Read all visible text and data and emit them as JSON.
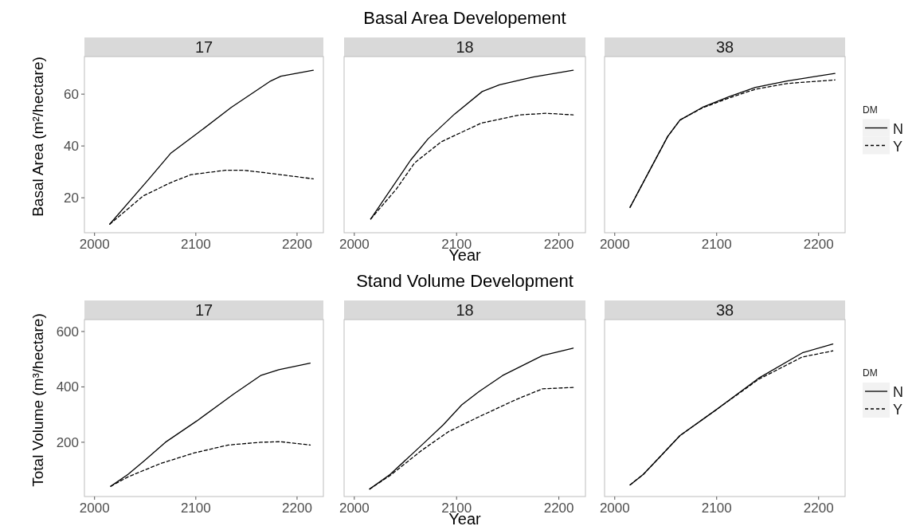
{
  "chart_data": [
    {
      "type": "line",
      "subtitle": "17",
      "ylabel": "Basal Area (m²/hectare)",
      "xlim": [
        1990,
        2226
      ],
      "xticks": [
        2000,
        2100,
        2200
      ],
      "ylim": [
        6.5,
        74.5
      ],
      "yticks": [
        20,
        40,
        60
      ],
      "legend": false,
      "series": [
        {
          "color": "#000000",
          "line_style": "solid",
          "x": [
            2015,
            2054,
            2075,
            2101,
            2135,
            2174,
            2184,
            2216
          ],
          "values": [
            9.8,
            27.4,
            37.1,
            44.7,
            54.9,
            65.1,
            66.9,
            69.2
          ]
        },
        {
          "color": "#000000",
          "line_style": "dashed",
          "x": [
            2015,
            2048,
            2075,
            2095,
            2129,
            2148,
            2174,
            2216
          ],
          "values": [
            9.8,
            20.7,
            25.8,
            28.9,
            30.6,
            30.6,
            29.4,
            27.3
          ]
        }
      ]
    },
    {
      "type": "line",
      "title": "Basal Area Developement",
      "subtitle": "18",
      "xlabel": "Year",
      "xlim": [
        1990,
        2226
      ],
      "xticks": [
        2000,
        2100,
        2200
      ],
      "ylim": [
        6.5,
        74.5
      ],
      "tick_labels": "x",
      "legend": false,
      "series": [
        {
          "color": "#000000",
          "line_style": "solid",
          "x": [
            2016,
            2055,
            2072,
            2098,
            2125,
            2142,
            2175,
            2214
          ],
          "values": [
            11.8,
            34.5,
            42.7,
            52.3,
            61.0,
            63.6,
            66.6,
            69.2
          ]
        },
        {
          "color": "#000000",
          "line_style": "dashed",
          "x": [
            2016,
            2041,
            2059,
            2085,
            2124,
            2162,
            2188,
            2214
          ],
          "values": [
            11.8,
            23.3,
            33.5,
            41.6,
            48.8,
            52.0,
            52.6,
            52.0
          ]
        }
      ]
    },
    {
      "type": "line",
      "subtitle": "38",
      "xlim": [
        1990,
        2226
      ],
      "xticks": [
        2000,
        2100,
        2200
      ],
      "ylim": [
        6.5,
        74.5
      ],
      "tick_labels": "x",
      "legend": "right",
      "legend_title": "DM",
      "series": [
        {
          "name": "N",
          "color": "#000000",
          "line_style": "solid",
          "x": [
            2015,
            2034,
            2052,
            2064,
            2086,
            2112,
            2138,
            2169,
            2216
          ],
          "values": [
            16.3,
            30.4,
            43.7,
            50.0,
            54.9,
            59.0,
            62.6,
            65.1,
            68.0
          ]
        },
        {
          "name": "Y",
          "color": "#000000",
          "line_style": "dashed",
          "x": [
            2015,
            2034,
            2052,
            2064,
            2086,
            2112,
            2138,
            2169,
            2216
          ],
          "values": [
            16.3,
            30.4,
            43.7,
            50.0,
            54.7,
            58.5,
            61.9,
            64.1,
            65.5
          ]
        }
      ]
    },
    {
      "type": "line",
      "subtitle": "17",
      "ylabel": "Total Volume (m³/hectare)",
      "xlim": [
        1990,
        2226
      ],
      "xticks": [
        2000,
        2100,
        2200
      ],
      "ylim": [
        4,
        643
      ],
      "yticks": [
        200,
        400,
        600
      ],
      "legend": false,
      "series": [
        {
          "color": "#000000",
          "line_style": "solid",
          "x": [
            2016,
            2033,
            2049,
            2070,
            2101,
            2137,
            2164,
            2182,
            2213
          ],
          "values": [
            41,
            84,
            133,
            200,
            277,
            373,
            441,
            462,
            486
          ]
        },
        {
          "color": "#000000",
          "line_style": "dashed",
          "x": [
            2016,
            2033,
            2065,
            2098,
            2132,
            2164,
            2184,
            2213
          ],
          "values": [
            41,
            75,
            123,
            161,
            190,
            200,
            202,
            190
          ]
        }
      ]
    },
    {
      "type": "line",
      "title": "Stand Volume Development",
      "subtitle": "18",
      "xlabel": "Year",
      "xlim": [
        1990,
        2226
      ],
      "xticks": [
        2000,
        2100,
        2200
      ],
      "ylim": [
        4,
        643
      ],
      "tick_labels": "x",
      "legend": false,
      "series": [
        {
          "color": "#000000",
          "line_style": "solid",
          "x": [
            2015,
            2035,
            2066,
            2087,
            2105,
            2122,
            2145,
            2184,
            2214
          ],
          "values": [
            31,
            84,
            190,
            263,
            335,
            383,
            441,
            513,
            540
          ]
        },
        {
          "color": "#000000",
          "line_style": "dashed",
          "x": [
            2015,
            2035,
            2066,
            2092,
            2119,
            2158,
            2184,
            2214
          ],
          "values": [
            31,
            80,
            171,
            238,
            287,
            354,
            393,
            398
          ]
        }
      ]
    },
    {
      "type": "line",
      "subtitle": "38",
      "xlim": [
        1990,
        2226
      ],
      "xticks": [
        2000,
        2100,
        2200
      ],
      "ylim": [
        4,
        643
      ],
      "tick_labels": "x",
      "legend": "right",
      "legend_title": "DM",
      "series": [
        {
          "name": "N",
          "color": "#000000",
          "line_style": "solid",
          "x": [
            2015,
            2028,
            2043,
            2064,
            2099,
            2141,
            2184,
            2214
          ],
          "values": [
            46,
            84,
            142,
            224,
            316,
            431,
            523,
            555
          ]
        },
        {
          "name": "Y",
          "color": "#000000",
          "line_style": "dashed",
          "x": [
            2015,
            2028,
            2043,
            2064,
            2099,
            2141,
            2184,
            2214
          ],
          "values": [
            46,
            84,
            142,
            224,
            316,
            427,
            508,
            530
          ]
        }
      ]
    }
  ]
}
